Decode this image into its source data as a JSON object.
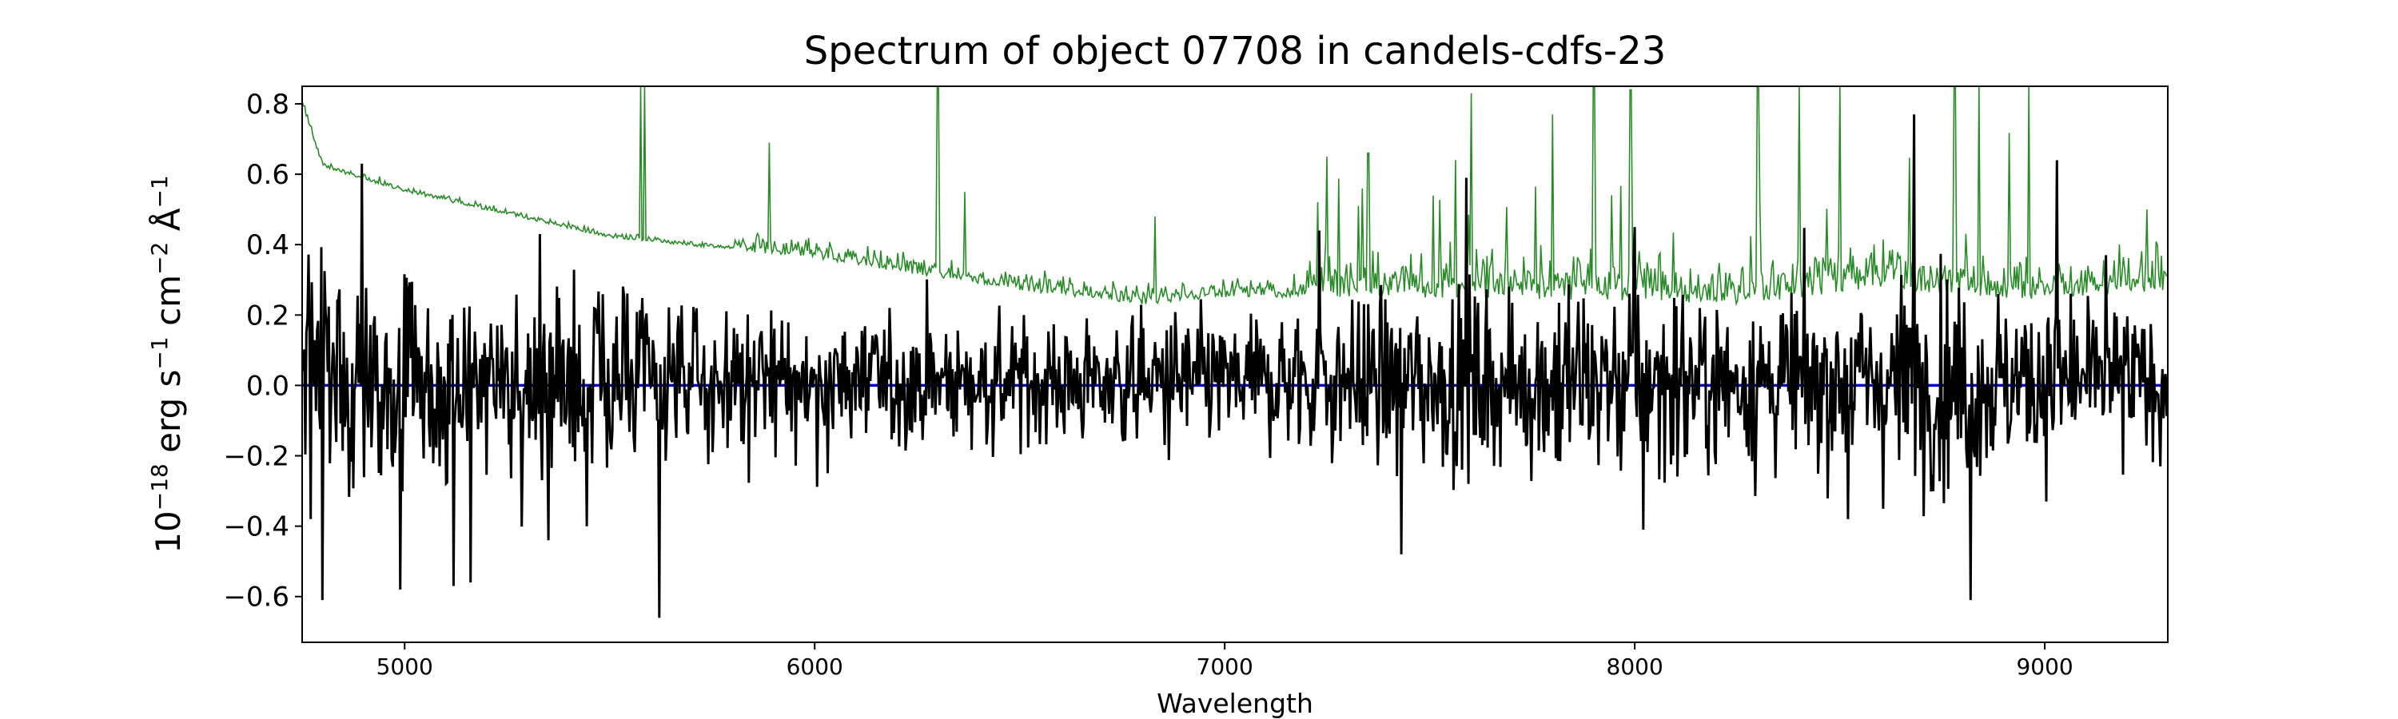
{
  "chart_data": {
    "type": "line",
    "title": "Spectrum of object 07708 in candels-cdfs-23",
    "xlabel": "Wavelength",
    "ylabel_parts": [
      "10",
      "−18",
      " erg s",
      "−1",
      " cm",
      "−2",
      " Å",
      "−1"
    ],
    "xlim": [
      4750,
      9300
    ],
    "ylim": [
      -0.73,
      0.85
    ],
    "xticks": [
      5000,
      6000,
      7000,
      8000,
      9000
    ],
    "yticks": [
      -0.6,
      -0.4,
      -0.2,
      0.0,
      0.2,
      0.4,
      0.6,
      0.8
    ],
    "ytick_labels": [
      "−0.6",
      "−0.4",
      "−0.2",
      "0.0",
      "0.2",
      "0.4",
      "0.6",
      "0.8"
    ],
    "grid": false,
    "colors": {
      "flux": "#000000",
      "error": "#2a8a2a",
      "zero": "#0000cc"
    },
    "series": [
      {
        "key": "flux",
        "style": "black thick line",
        "noise_profile": {
          "x": [
            4750,
            5000,
            5500,
            6000,
            6500,
            7000,
            7500,
            8000,
            8300,
            8500,
            8700,
            8900,
            9100,
            9300
          ],
          "sigma": [
            0.2,
            0.2,
            0.17,
            0.13,
            0.12,
            0.12,
            0.17,
            0.18,
            0.16,
            0.17,
            0.2,
            0.17,
            0.15,
            0.14
          ]
        },
        "features": [
          {
            "x": 4800,
            "y": -0.61
          },
          {
            "x": 4770,
            "y": -0.38
          },
          {
            "x": 4895,
            "y": 0.63
          },
          {
            "x": 4990,
            "y": -0.58
          },
          {
            "x": 5120,
            "y": -0.57
          },
          {
            "x": 5160,
            "y": -0.56
          },
          {
            "x": 5330,
            "y": 0.43
          },
          {
            "x": 5350,
            "y": -0.44
          },
          {
            "x": 5620,
            "y": -0.66
          },
          {
            "x": 7230,
            "y": 0.44
          },
          {
            "x": 7430,
            "y": -0.48
          },
          {
            "x": 7590,
            "y": 0.59
          },
          {
            "x": 8000,
            "y": 0.45
          },
          {
            "x": 8020,
            "y": -0.41
          },
          {
            "x": 8520,
            "y": -0.38
          },
          {
            "x": 8680,
            "y": 0.77
          },
          {
            "x": 8820,
            "y": -0.61
          },
          {
            "x": 9030,
            "y": 0.64
          },
          {
            "x": 9150,
            "y": 0.37
          }
        ]
      },
      {
        "key": "error",
        "style": "thin green line",
        "baseline": {
          "x": [
            4750,
            4800,
            5000,
            5500,
            6000,
            6500,
            6800,
            7000,
            7500,
            8000,
            8300,
            8600,
            8900,
            9300
          ],
          "y": [
            0.8,
            0.62,
            0.55,
            0.42,
            0.36,
            0.27,
            0.23,
            0.25,
            0.25,
            0.24,
            0.23,
            0.28,
            0.24,
            0.27
          ]
        },
        "spikes": [
          {
            "x": 5575,
            "y": 0.85
          },
          {
            "x": 5585,
            "y": 0.85
          },
          {
            "x": 5890,
            "y": 0.69
          },
          {
            "x": 6300,
            "y": 0.85
          },
          {
            "x": 6365,
            "y": 0.55
          },
          {
            "x": 6830,
            "y": 0.48
          },
          {
            "x": 7250,
            "y": 0.65
          },
          {
            "x": 7350,
            "y": 0.66
          },
          {
            "x": 7600,
            "y": 0.83
          },
          {
            "x": 7800,
            "y": 0.77
          },
          {
            "x": 7900,
            "y": 0.85
          },
          {
            "x": 7990,
            "y": 0.84
          },
          {
            "x": 8300,
            "y": 0.85
          },
          {
            "x": 8400,
            "y": 0.85
          },
          {
            "x": 8500,
            "y": 0.85
          },
          {
            "x": 8780,
            "y": 0.85
          },
          {
            "x": 8840,
            "y": 0.85
          },
          {
            "x": 8960,
            "y": 0.85
          },
          {
            "x": 9250,
            "y": 0.5
          }
        ]
      },
      {
        "key": "zero",
        "style": "blue horizontal line",
        "x": [
          4750,
          9300
        ],
        "y": [
          0.0,
          0.0
        ]
      }
    ]
  }
}
